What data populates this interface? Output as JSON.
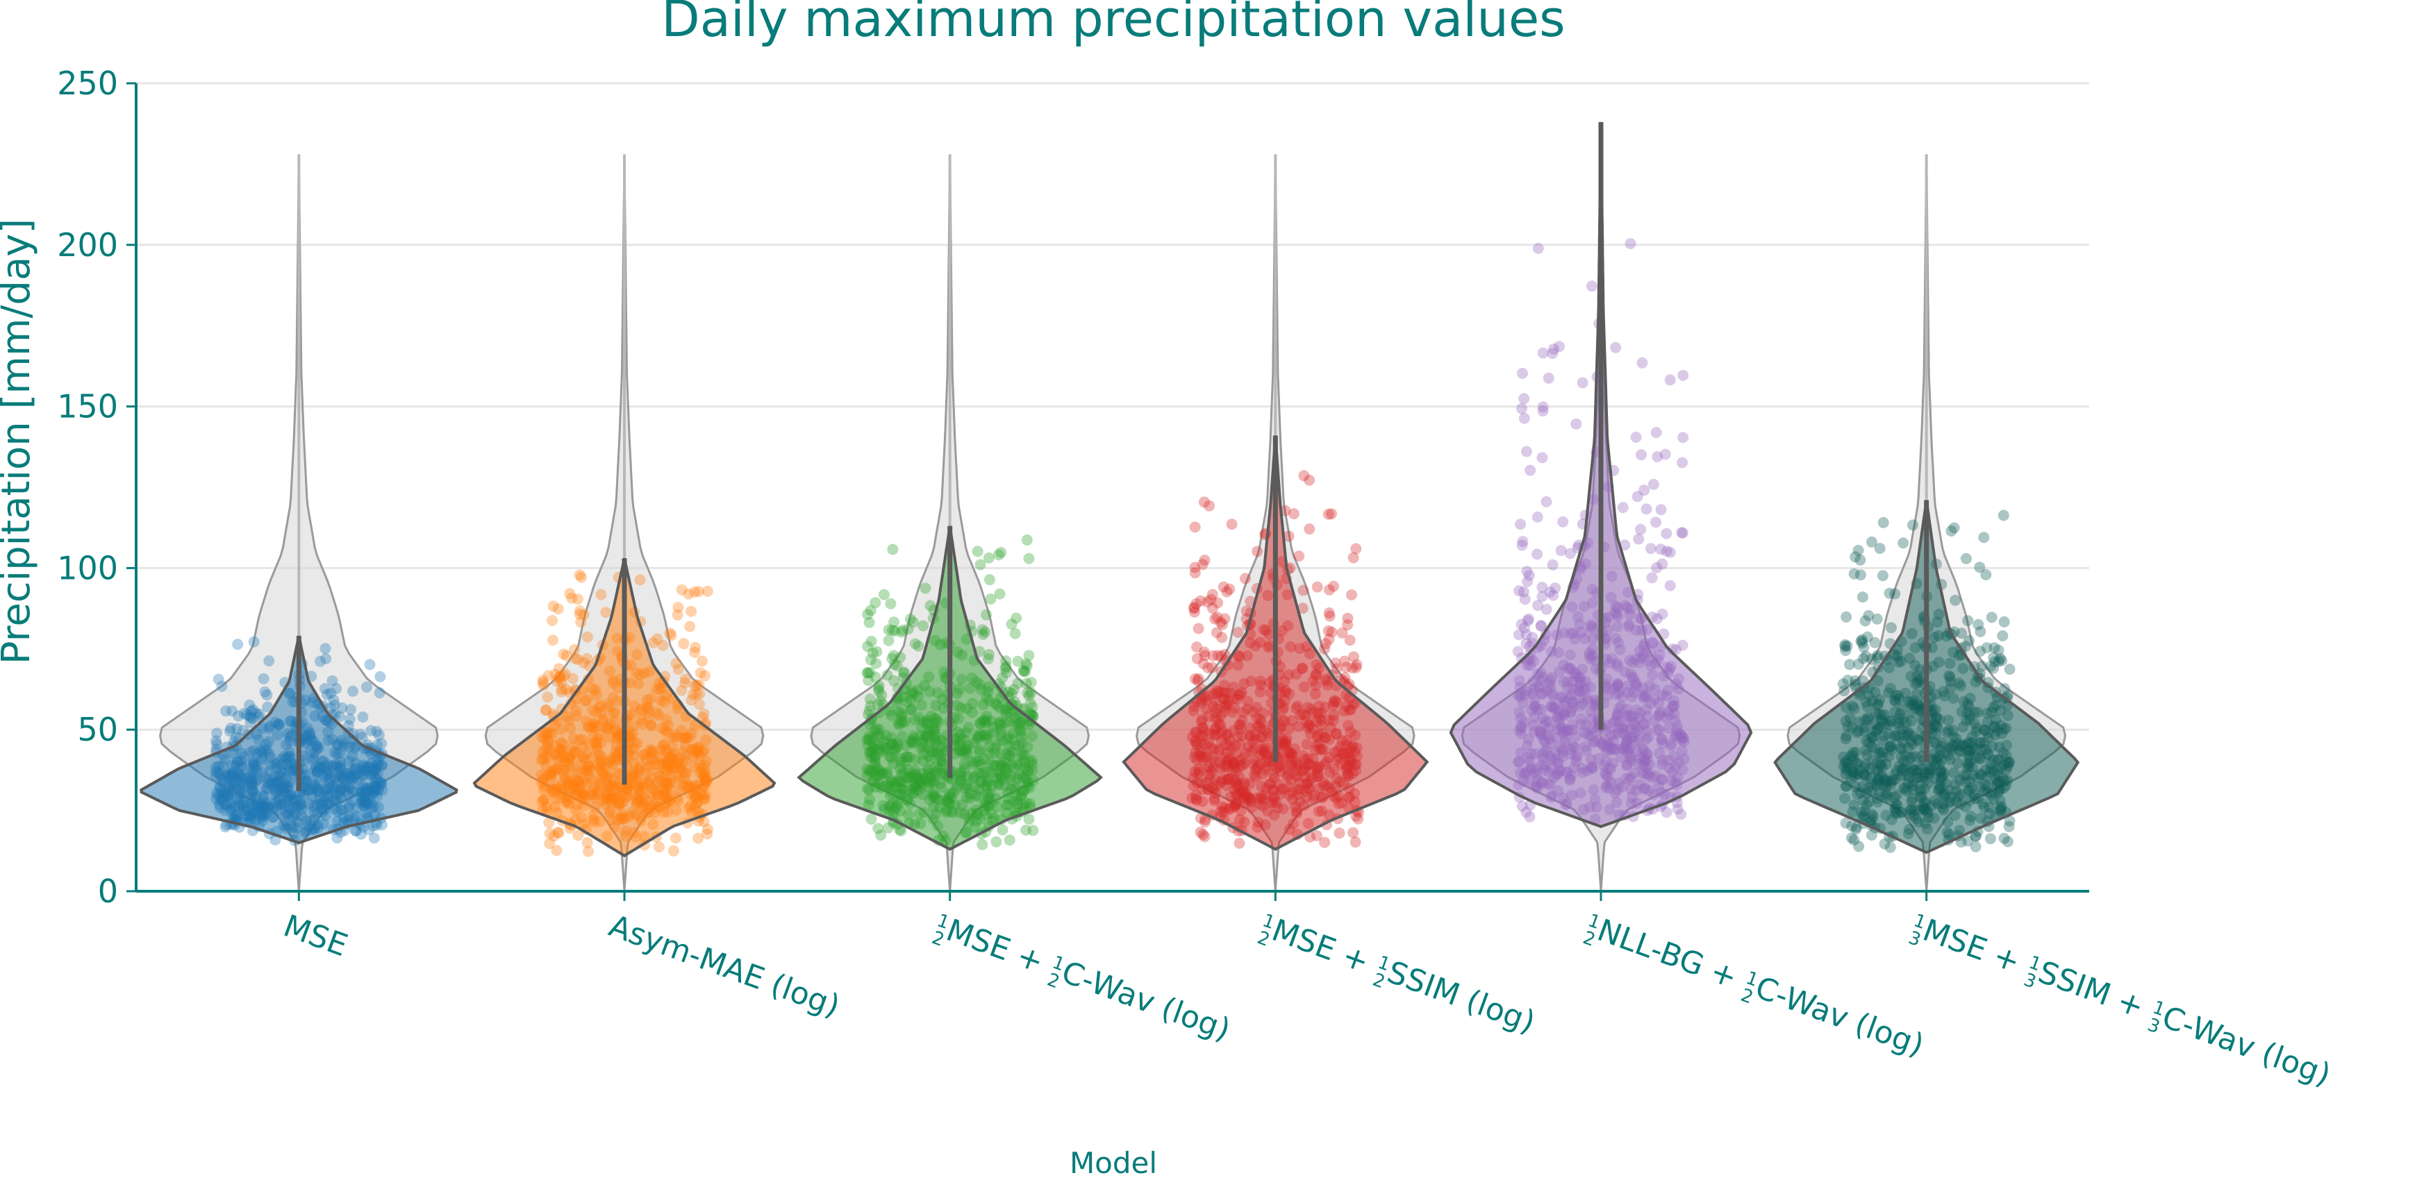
{
  "chart_data": {
    "type": "violin",
    "title": "Daily maximum precipitation values",
    "xlabel": "Model",
    "ylabel": "Precipitation [mm/day]",
    "ylim": [
      0,
      250
    ],
    "yticks": [
      0,
      50,
      100,
      150,
      200,
      250
    ],
    "grid": "horizontal",
    "text_color": "#087c7a",
    "reference": {
      "description_color": "#d3d3d3",
      "max": 228,
      "median": 47,
      "density": [
        [
          0,
          0
        ],
        [
          15,
          0.02
        ],
        [
          25,
          0.15
        ],
        [
          35,
          0.55
        ],
        [
          45,
          0.82
        ],
        [
          50,
          0.84
        ],
        [
          55,
          0.7
        ],
        [
          65,
          0.42
        ],
        [
          75,
          0.28
        ],
        [
          85,
          0.24
        ],
        [
          95,
          0.18
        ],
        [
          105,
          0.1
        ],
        [
          120,
          0.05
        ],
        [
          140,
          0.03
        ],
        [
          160,
          0.015
        ],
        [
          190,
          0.008
        ],
        [
          228,
          0
        ]
      ]
    },
    "categories": [
      {
        "label": [
          "",
          "MSE",
          "",
          ""
        ],
        "color": "#1f77b4",
        "min": 15,
        "max": 79,
        "center": 31,
        "density": [
          [
            15,
            0
          ],
          [
            20,
            0.3
          ],
          [
            25,
            0.75
          ],
          [
            31,
            1.0
          ],
          [
            38,
            0.75
          ],
          [
            45,
            0.4
          ],
          [
            55,
            0.18
          ],
          [
            65,
            0.06
          ],
          [
            79,
            0
          ]
        ]
      },
      {
        "label": [
          "",
          "Asym-MAE (log)",
          "",
          ""
        ],
        "color": "#ff7f0e",
        "min": 11,
        "max": 103,
        "center": 33,
        "density": [
          [
            11,
            0
          ],
          [
            20,
            0.3
          ],
          [
            27,
            0.7
          ],
          [
            33,
            0.95
          ],
          [
            42,
            0.75
          ],
          [
            55,
            0.4
          ],
          [
            70,
            0.18
          ],
          [
            85,
            0.08
          ],
          [
            103,
            0
          ]
        ]
      },
      {
        "label": [
          "1/2",
          "MSE + ",
          "1/2",
          "C-Wav (log)"
        ],
        "color": "#2ca02c",
        "min": 13,
        "max": 113,
        "center": 35,
        "density": [
          [
            13,
            0
          ],
          [
            22,
            0.35
          ],
          [
            29,
            0.75
          ],
          [
            35,
            0.95
          ],
          [
            45,
            0.72
          ],
          [
            58,
            0.38
          ],
          [
            72,
            0.17
          ],
          [
            90,
            0.07
          ],
          [
            113,
            0
          ]
        ]
      },
      {
        "label": [
          "1/2",
          "MSE + ",
          "1/2",
          "SSIM (log)"
        ],
        "color": "#d62728",
        "min": 13,
        "max": 141,
        "center": 40,
        "density": [
          [
            13,
            0
          ],
          [
            22,
            0.35
          ],
          [
            31,
            0.8
          ],
          [
            40,
            0.95
          ],
          [
            52,
            0.7
          ],
          [
            65,
            0.38
          ],
          [
            80,
            0.18
          ],
          [
            100,
            0.07
          ],
          [
            120,
            0.03
          ],
          [
            141,
            0
          ]
        ]
      },
      {
        "label": [
          "1/2",
          "NLL-BG + ",
          "1/2",
          "C-Wav (log)"
        ],
        "color": "#9467bd",
        "min": 20,
        "max": 238,
        "center": 50,
        "density": [
          [
            20,
            0
          ],
          [
            28,
            0.45
          ],
          [
            38,
            0.82
          ],
          [
            50,
            0.95
          ],
          [
            62,
            0.7
          ],
          [
            75,
            0.42
          ],
          [
            90,
            0.22
          ],
          [
            110,
            0.1
          ],
          [
            140,
            0.04
          ],
          [
            180,
            0.015
          ],
          [
            238,
            0
          ]
        ]
      },
      {
        "label": [
          "1/3",
          "MSE + ",
          "1/3",
          "SSIM + ",
          "1/3",
          "C-Wav (log)"
        ],
        "color": "#0d5c56",
        "min": 12,
        "max": 121,
        "center": 40,
        "density": [
          [
            12,
            0
          ],
          [
            20,
            0.35
          ],
          [
            30,
            0.82
          ],
          [
            40,
            0.95
          ],
          [
            52,
            0.7
          ],
          [
            65,
            0.35
          ],
          [
            80,
            0.15
          ],
          [
            100,
            0.06
          ],
          [
            121,
            0
          ]
        ]
      }
    ]
  }
}
